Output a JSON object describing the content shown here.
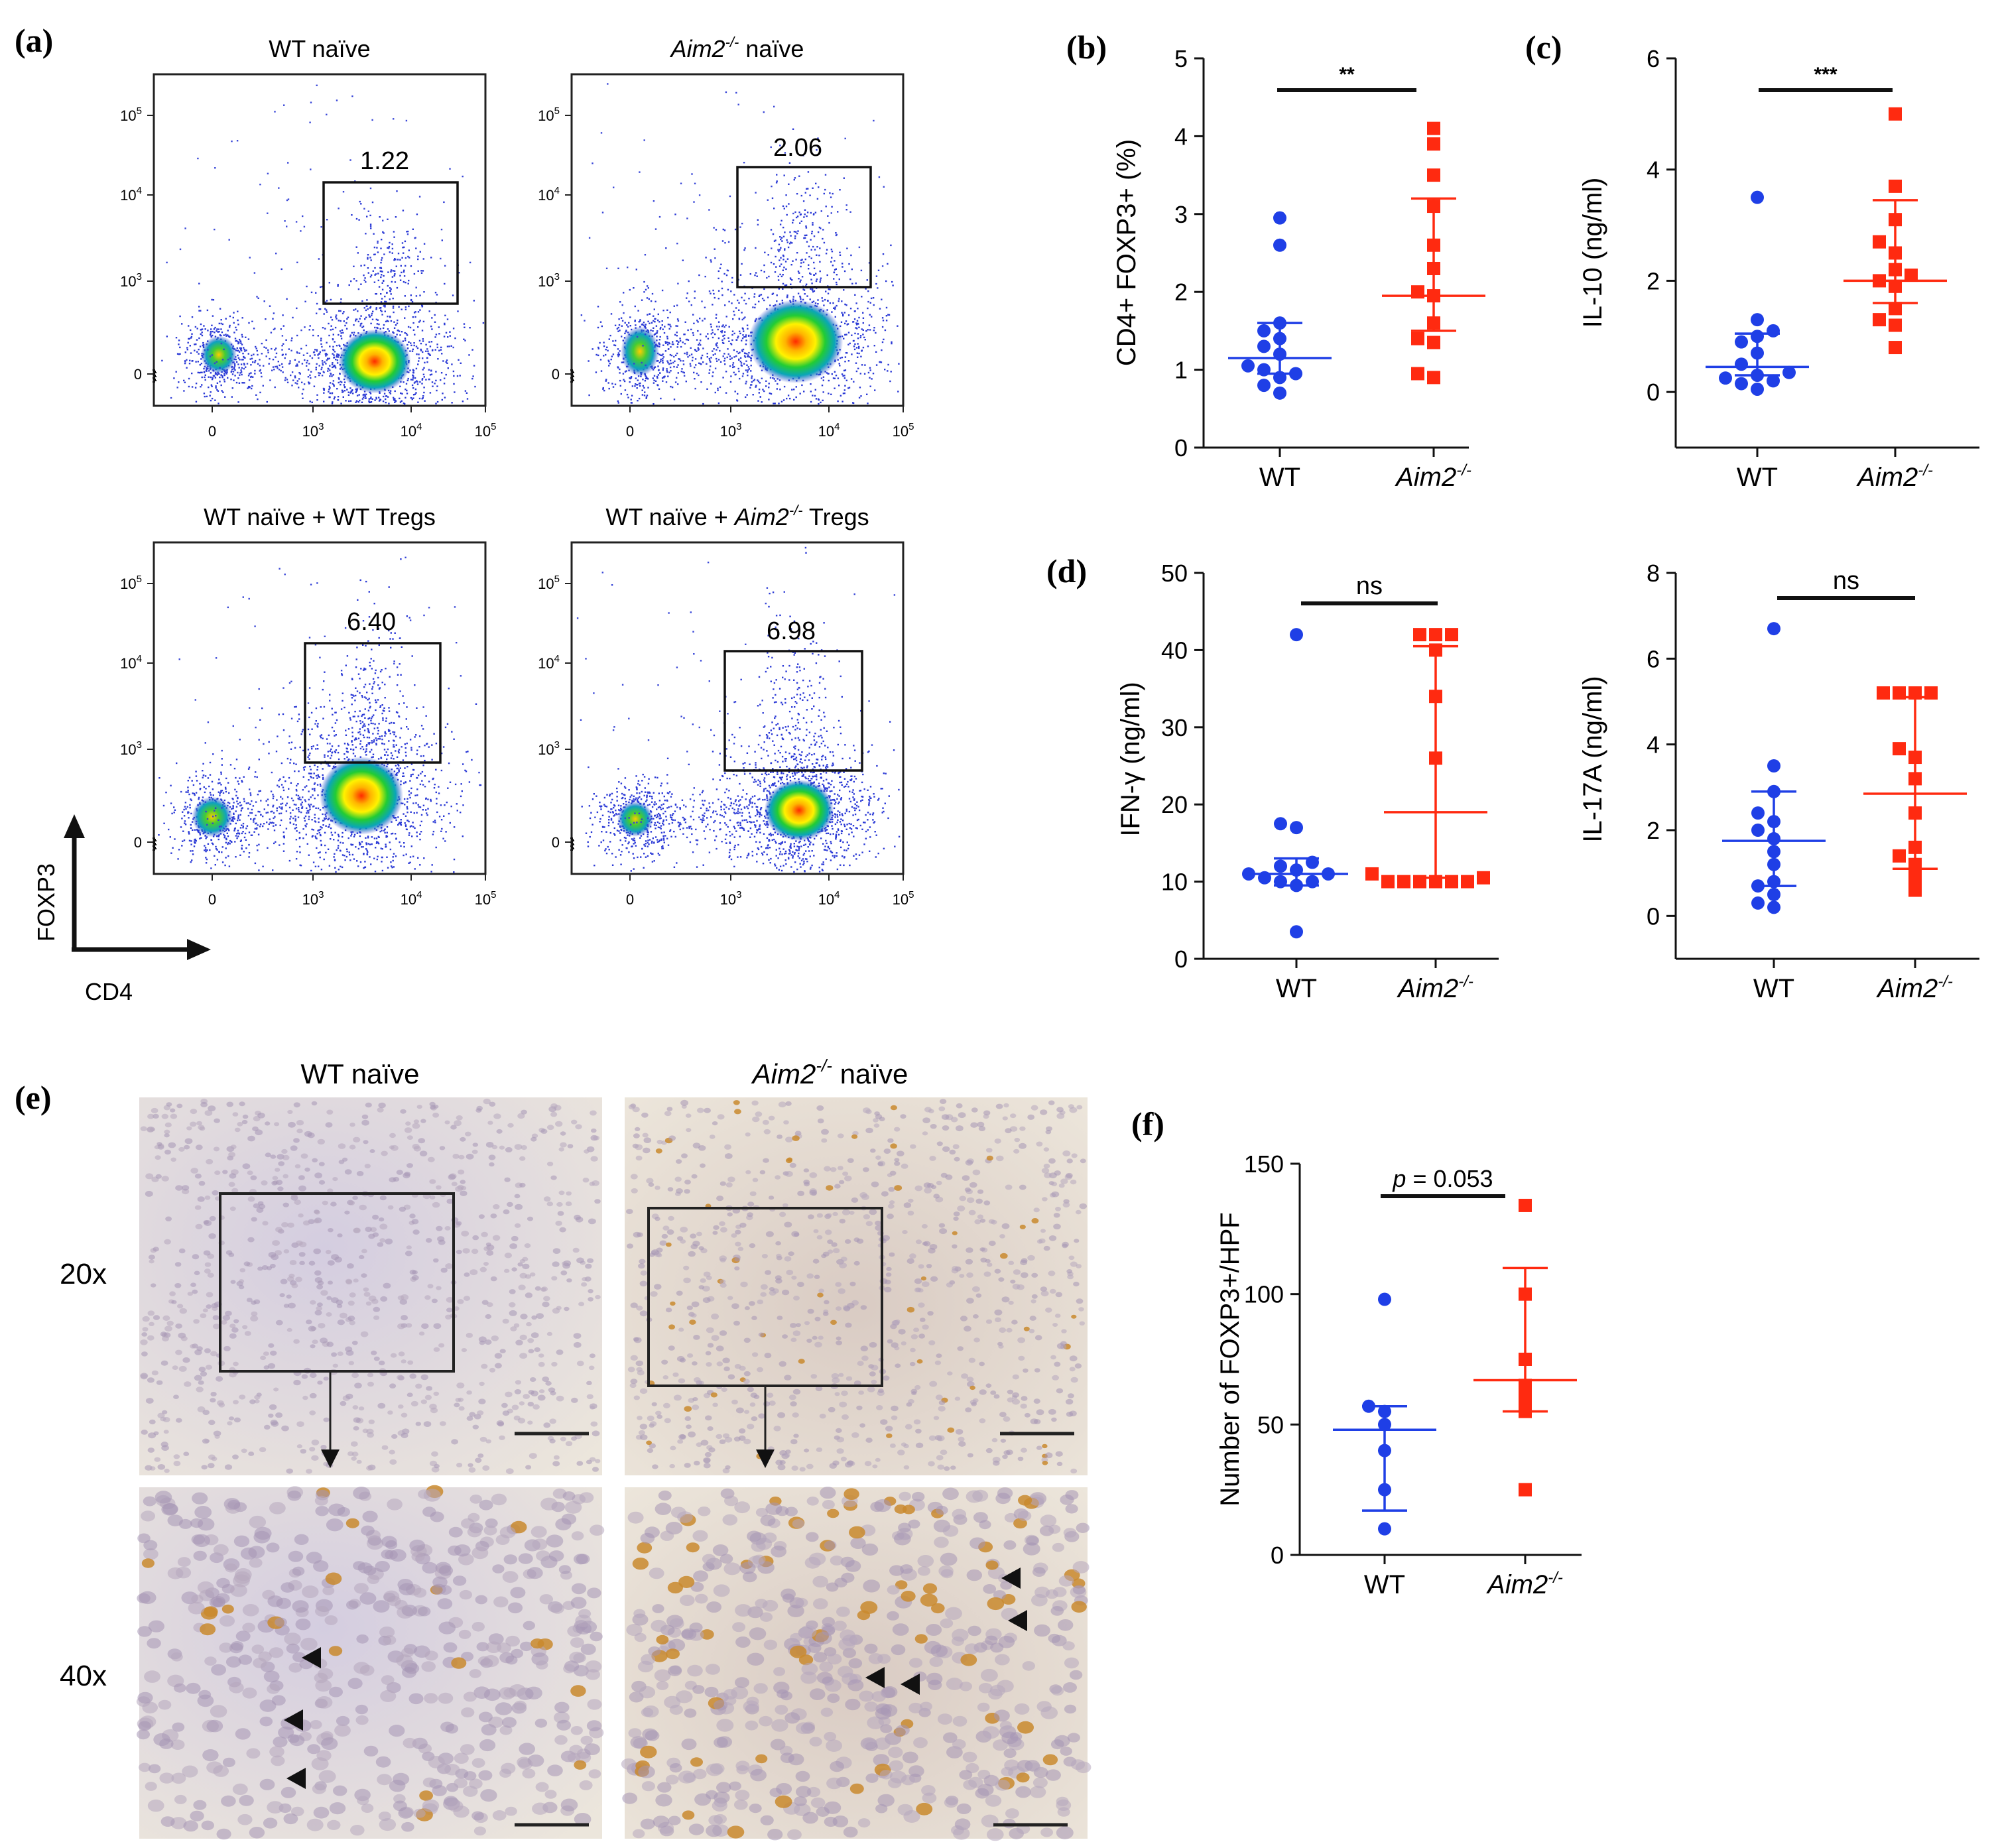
{
  "figure": {
    "panel_labels": {
      "a": "(a)",
      "b": "(b)",
      "c": "(c)",
      "d": "(d)",
      "e": "(e)",
      "f": "(f)"
    },
    "colors": {
      "wt": "#1f3fe6",
      "ko": "#ff2a10",
      "axis": "#111111"
    },
    "icon_names": [
      "scatter-point",
      "square-marker",
      "arrowhead-icon"
    ]
  },
  "flow": {
    "plots": [
      {
        "title_pre": "WT naïve",
        "title_ital": "",
        "title_sup": "",
        "title_post": "",
        "gate_value": "1.22"
      },
      {
        "title_pre": "",
        "title_ital": "Aim2",
        "title_sup": "-/-",
        "title_post": " naïve",
        "gate_value": "2.06"
      },
      {
        "title_pre": "WT naïve + WT Tregs",
        "title_ital": "",
        "title_sup": "",
        "title_post": "",
        "gate_value": "6.40"
      },
      {
        "title_pre": "WT naïve + ",
        "title_ital": "Aim2",
        "title_sup": "-/-",
        "title_post": " Tregs",
        "gate_value": "6.98"
      }
    ],
    "y_ticks": [
      "10",
      "10",
      "10",
      "0"
    ],
    "y_tick_sups": [
      "5",
      "4",
      "3",
      ""
    ],
    "x_ticks": [
      "0",
      "10",
      "10",
      "10"
    ],
    "x_tick_sups": [
      "",
      "3",
      "4",
      "5"
    ],
    "axis_y_label": "FOXP3",
    "axis_x_label": "CD4"
  },
  "micro": {
    "col_titles": [
      {
        "pre": "WT naïve",
        "ital": "",
        "sup": "",
        "post": ""
      },
      {
        "pre": "",
        "ital": "Aim2",
        "sup": "-/-",
        "post": " naïve"
      }
    ],
    "row_labels": [
      "20x",
      "40x"
    ]
  },
  "chart_data": [
    {
      "type": "scatter",
      "panel": "b",
      "ylabel": "CD4+ FOXP3+ (%)",
      "ylim": [
        0,
        5
      ],
      "yticks": [
        "0",
        "1",
        "2",
        "3",
        "4",
        "5"
      ],
      "categories": [
        "WT",
        "Aim2"
      ],
      "category_sup": [
        "",
        "-/-"
      ],
      "series": [
        {
          "name": "WT",
          "marker": "circle",
          "values": [
            0.7,
            0.8,
            0.9,
            0.95,
            1.0,
            1.05,
            1.2,
            1.3,
            1.4,
            1.5,
            1.6,
            2.6,
            2.95
          ],
          "median": 1.15,
          "lower": 0.95,
          "upper": 1.6
        },
        {
          "name": "Aim2-/-",
          "marker": "square",
          "values": [
            0.9,
            0.95,
            1.35,
            1.4,
            1.6,
            1.95,
            2.0,
            2.3,
            2.6,
            3.1,
            3.5,
            3.9,
            4.1
          ],
          "median": 1.95,
          "lower": 1.5,
          "upper": 3.2
        }
      ],
      "significance": "**"
    },
    {
      "type": "scatter",
      "panel": "c",
      "ylabel": "IL-10 (ng/ml)",
      "ylim": [
        -1,
        6
      ],
      "yticks": [
        "0",
        "2",
        "4",
        "6"
      ],
      "categories": [
        "WT",
        "Aim2"
      ],
      "category_sup": [
        "",
        "-/-"
      ],
      "series": [
        {
          "name": "WT",
          "marker": "circle",
          "values": [
            0.05,
            0.15,
            0.2,
            0.25,
            0.3,
            0.35,
            0.5,
            0.7,
            0.9,
            1.0,
            1.1,
            1.3,
            3.5
          ],
          "median": 0.45,
          "lower": 0.3,
          "upper": 1.05
        },
        {
          "name": "Aim2-/-",
          "marker": "square",
          "values": [
            0.8,
            1.2,
            1.3,
            1.5,
            1.9,
            2.0,
            2.1,
            2.2,
            2.5,
            2.7,
            3.1,
            3.7,
            5.0
          ],
          "median": 2.0,
          "lower": 1.6,
          "upper": 3.45
        }
      ],
      "significance": "***"
    },
    {
      "type": "scatter",
      "panel": "d-left",
      "ylabel": "IFN-γ (ng/ml)",
      "ylim": [
        0,
        50
      ],
      "yticks": [
        "0",
        "10",
        "20",
        "30",
        "40",
        "50"
      ],
      "categories": [
        "WT",
        "Aim2"
      ],
      "category_sup": [
        "",
        "-/-"
      ],
      "series": [
        {
          "name": "WT",
          "marker": "circle",
          "values": [
            3.5,
            9.5,
            10,
            10,
            10.5,
            11,
            11,
            11.5,
            12,
            12.5,
            17,
            17.5,
            42
          ],
          "median": 11,
          "lower": 9.5,
          "upper": 13
        },
        {
          "name": "Aim2-/-",
          "marker": "square",
          "values": [
            10,
            10,
            10,
            10,
            10,
            10,
            10.5,
            11,
            26,
            34,
            40,
            42,
            42,
            42
          ],
          "median": 19,
          "lower": 10.5,
          "upper": 40.5
        }
      ],
      "significance": "ns"
    },
    {
      "type": "scatter",
      "panel": "d-right",
      "ylabel": "IL-17A (ng/ml)",
      "ylim": [
        -1,
        8
      ],
      "yticks": [
        "0",
        "2",
        "4",
        "6",
        "8"
      ],
      "categories": [
        "WT",
        "Aim2"
      ],
      "category_sup": [
        "",
        "-/-"
      ],
      "series": [
        {
          "name": "WT",
          "marker": "circle",
          "values": [
            0.2,
            0.3,
            0.5,
            0.7,
            0.8,
            1.2,
            1.5,
            1.8,
            2.0,
            2.2,
            2.4,
            2.9,
            3.5,
            6.7
          ],
          "median": 1.75,
          "lower": 0.7,
          "upper": 2.9
        },
        {
          "name": "Aim2-/-",
          "marker": "square",
          "values": [
            0.6,
            0.9,
            1.2,
            1.4,
            1.6,
            2.4,
            3.2,
            3.7,
            3.9,
            5.2,
            5.2,
            5.2,
            5.2
          ],
          "median": 2.85,
          "lower": 1.1,
          "upper": 5.1
        }
      ],
      "significance": "ns"
    },
    {
      "type": "scatter",
      "panel": "f",
      "ylabel": "Number of FOXP3+/HPF",
      "ylim": [
        0,
        150
      ],
      "yticks": [
        "0",
        "50",
        "100",
        "150"
      ],
      "categories": [
        "WT",
        "Aim2"
      ],
      "category_sup": [
        "",
        "-/-"
      ],
      "series": [
        {
          "name": "WT",
          "marker": "circle",
          "values": [
            10,
            25,
            40,
            50,
            55,
            57,
            98
          ],
          "median": 48,
          "lower": 17,
          "upper": 57
        },
        {
          "name": "Aim2-/-",
          "marker": "square",
          "values": [
            25,
            55,
            60,
            65,
            75,
            100,
            134
          ],
          "median": 67,
          "lower": 55,
          "upper": 110
        }
      ],
      "significance": "p = 0.053",
      "significance_ital": "p",
      "significance_rest": " = 0.053"
    }
  ]
}
